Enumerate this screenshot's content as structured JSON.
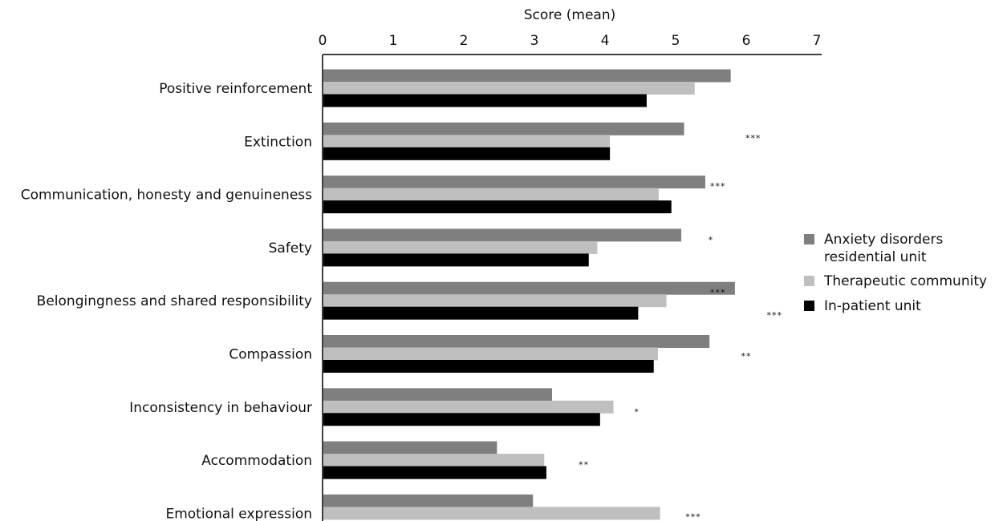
{
  "chart_data": {
    "type": "bar",
    "orientation": "horizontal",
    "xlabel": "Score (mean)",
    "xlim": [
      0,
      7
    ],
    "xticks": [
      0,
      1,
      2,
      3,
      4,
      5,
      6,
      7
    ],
    "x_axis_position": "top",
    "legend_position": "right",
    "categories": [
      "Positive reinforcement",
      "Extinction",
      "Communication, honesty and genuineness",
      "Safety",
      "Belongingness and shared responsibility",
      "Compassion",
      "Inconsistency in behaviour",
      "Accommodation",
      "Emotional expression"
    ],
    "series": [
      {
        "name": "Anxiety disorders residential unit",
        "legend_lines": [
          "Anxiety disorders",
          "residential unit"
        ],
        "color": "#7f7f7f",
        "values": [
          5.78,
          5.12,
          5.42,
          5.08,
          5.84,
          5.48,
          3.25,
          2.47,
          2.98
        ]
      },
      {
        "name": "Therapeutic community",
        "legend_lines": [
          "Therapeutic community"
        ],
        "color": "#bfbfbf",
        "values": [
          5.27,
          4.07,
          4.76,
          3.89,
          4.87,
          4.75,
          4.12,
          3.14,
          4.78
        ]
      },
      {
        "name": "In-patient unit",
        "legend_lines": [
          "In-patient unit"
        ],
        "color": "#000000",
        "values": [
          4.59,
          4.07,
          4.94,
          3.77,
          4.47,
          4.69,
          3.93,
          3.17,
          null
        ]
      }
    ],
    "annotations": [
      {
        "text": "***",
        "x": 6.1,
        "category": 1,
        "offset": -0.55
      },
      {
        "text": "***",
        "x": 5.6,
        "category": 2,
        "offset": -0.95
      },
      {
        "text": "*",
        "x": 5.5,
        "category": 3,
        "offset": -0.9
      },
      {
        "text": "***",
        "x": 5.6,
        "category": 4,
        "offset": -0.95
      },
      {
        "text": "***",
        "x": 6.4,
        "category": 4,
        "offset": 0.9
      },
      {
        "text": "**",
        "x": 6.0,
        "category": 5,
        "offset": -0.1
      },
      {
        "text": "*",
        "x": 4.45,
        "category": 6,
        "offset": 0.1
      },
      {
        "text": "**",
        "x": 3.7,
        "category": 7,
        "offset": 0.1
      },
      {
        "text": "***",
        "x": 5.25,
        "category": 8,
        "offset": 0.0
      }
    ]
  }
}
